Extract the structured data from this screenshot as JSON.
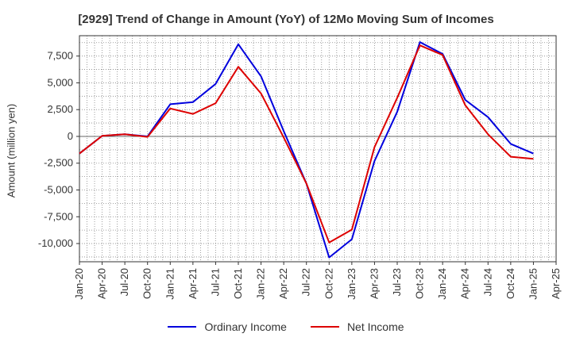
{
  "chart_data": {
    "type": "line",
    "title": "[2929]  Trend of Change in Amount (YoY) of 12Mo Moving Sum of Incomes",
    "ylabel": "Amount (million yen)",
    "xlabel": "",
    "ylim": [
      -11700,
      9400
    ],
    "yticks": [
      7500,
      5000,
      2500,
      0,
      -2500,
      -5000,
      -7500,
      -10000
    ],
    "ytick_labels": [
      "7,500",
      "5,000",
      "2,500",
      "0",
      "-2,500",
      "-5,000",
      "-7,500",
      "-10,000"
    ],
    "x_tick_labels": [
      "Jan-20",
      "Apr-20",
      "Jul-20",
      "Oct-20",
      "Jan-21",
      "Apr-21",
      "Jul-21",
      "Oct-21",
      "Jan-22",
      "Apr-22",
      "Jul-22",
      "Oct-22",
      "Jan-23",
      "Apr-23",
      "Jul-23",
      "Oct-23",
      "Jan-24",
      "Apr-24",
      "Jul-24",
      "Oct-24",
      "Jan-25",
      "Apr-25"
    ],
    "grid": true,
    "legend_position": "bottom",
    "series": [
      {
        "name": "Ordinary Income",
        "color": "#0000dd",
        "values": [
          -1600,
          50,
          200,
          0,
          3000,
          3200,
          4900,
          8600,
          5600,
          500,
          -4400,
          -11300,
          -9600,
          -2300,
          2300,
          8800,
          7700,
          3400,
          1800,
          -700,
          -1600
        ]
      },
      {
        "name": "Net Income",
        "color": "#dd0000",
        "values": [
          -1600,
          50,
          200,
          -50,
          2600,
          2100,
          3100,
          6500,
          4000,
          -100,
          -4400,
          -9900,
          -8700,
          -1000,
          3600,
          8500,
          7600,
          2900,
          200,
          -1900,
          -2100
        ]
      }
    ]
  }
}
